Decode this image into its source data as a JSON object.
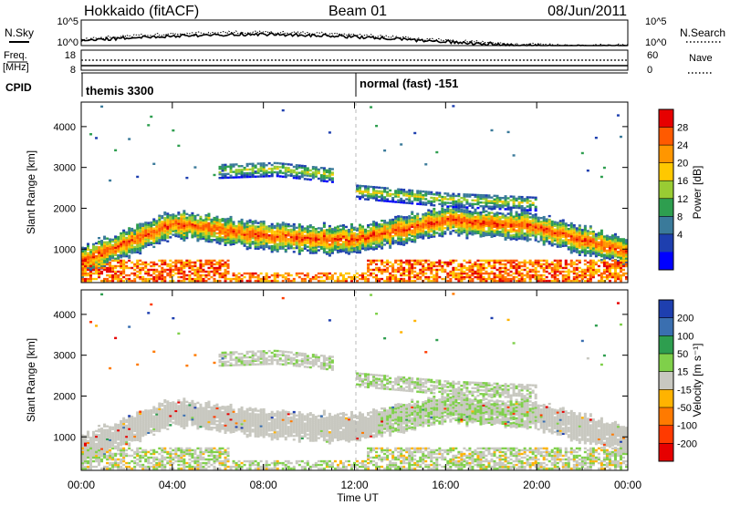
{
  "header": {
    "left": "Hokkaido (fitACF)",
    "center": "Beam 01",
    "right": "08/Jun/2011"
  },
  "top_panels": {
    "nsky_label": "N.Sky",
    "nsky_ticks": [
      "10^5",
      "10^0"
    ],
    "nsearch_label": "N.Search",
    "nsearch_ticks": [
      "10^5",
      "10^0"
    ],
    "freq_label_1": "Freq.",
    "freq_label_2": "[MHz]",
    "freq_ticks": [
      "18",
      "8"
    ],
    "nave_label": "Nave",
    "nave_ticks": [
      "60",
      "0"
    ],
    "cpid_label": "CPID",
    "cpid_segments": [
      {
        "label": "themis 3300",
        "start_hour": 0
      },
      {
        "label": "normal (fast) -151",
        "start_hour": 12
      }
    ]
  },
  "chart_data": [
    {
      "type": "heatmap",
      "quantity": "power",
      "ylabel": "Slant Range [km]",
      "ylim": [
        180,
        4600
      ],
      "yticks": [
        "1000",
        "2000",
        "3000",
        "4000"
      ],
      "xlim_hours": [
        0,
        24
      ],
      "colorbar_label": "Power [dB]",
      "colorbar_ticks": [
        "28",
        "24",
        "20",
        "16",
        "12",
        "8",
        "4"
      ],
      "colorbar_colors": [
        "#e60000",
        "#ff5a00",
        "#ff9600",
        "#ffc800",
        "#99cc33",
        "#2e9e4f",
        "#3a7a9a",
        "#1e3faf",
        "#0000ff"
      ],
      "bands": [
        {
          "hours": [
            0,
            24
          ],
          "center_km": [
            700,
            1600,
            1300,
            1200,
            1700,
            1500,
            900
          ],
          "level": "high"
        },
        {
          "hours": [
            6,
            11
          ],
          "center_km": [
            2900,
            2950,
            2800
          ],
          "level": "mid"
        },
        {
          "hours": [
            12,
            20
          ],
          "center_km": [
            2400,
            2200,
            2100
          ],
          "level": "mid"
        }
      ]
    },
    {
      "type": "heatmap",
      "quantity": "velocity",
      "ylabel": "Slant Range [km]",
      "ylim": [
        180,
        4600
      ],
      "yticks": [
        "1000",
        "2000",
        "3000",
        "4000"
      ],
      "xlim_hours": [
        0,
        24
      ],
      "xticks": [
        "00:00",
        "04:00",
        "08:00",
        "12:00",
        "16:00",
        "20:00",
        "00:00"
      ],
      "xlabel": "Time UT",
      "colorbar_label": "Velocity [m s⁻¹]",
      "colorbar_ticks": [
        "200",
        "100",
        "50",
        "15",
        "-15",
        "-50",
        "-100",
        "-200"
      ],
      "colorbar_colors": [
        "#1e3faf",
        "#3a6fb0",
        "#2e9e4f",
        "#7fd04a",
        "#c8c8c0",
        "#ffb300",
        "#ff7a00",
        "#ff3a00",
        "#e60000"
      ]
    }
  ]
}
